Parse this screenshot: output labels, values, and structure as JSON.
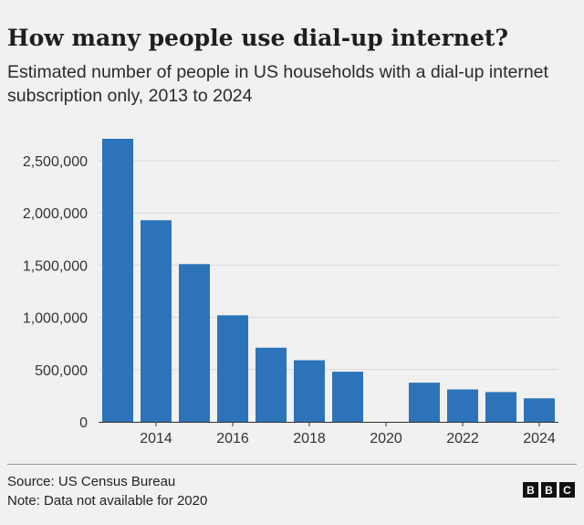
{
  "title": "How many people use dial-up internet?",
  "subtitle": "Estimated number of people in US households with a dial-up internet subscription only, 2013 to 2024",
  "chart_data": {
    "type": "bar",
    "title": "How many people use dial-up internet?",
    "subtitle": "Estimated number of people in US households with a dial-up internet subscription only, 2013 to 2024",
    "xlabel": "",
    "ylabel": "",
    "categories": [
      "2013",
      "2014",
      "2015",
      "2016",
      "2017",
      "2018",
      "2019",
      "2020",
      "2021",
      "2022",
      "2023",
      "2024"
    ],
    "values": [
      2710000,
      1930000,
      1510000,
      1020000,
      710000,
      590000,
      480000,
      null,
      375000,
      310000,
      285000,
      225000
    ],
    "ylim": [
      0,
      2750000
    ],
    "yticks": [
      0,
      500000,
      1000000,
      1500000,
      2000000,
      2500000
    ],
    "ytick_labels": [
      "0",
      "500,000",
      "1,000,000",
      "1,500,000",
      "2,000,000",
      "2,500,000"
    ],
    "xtick_labels": [
      "2014",
      "2016",
      "2018",
      "2020",
      "2022",
      "2024"
    ],
    "bar_color": "#2c73b9",
    "grid": true
  },
  "footer": {
    "source": "Source: US Census Bureau",
    "note": "Note: Data not available for 2020"
  },
  "logo": {
    "letters": [
      "B",
      "B",
      "C"
    ]
  }
}
